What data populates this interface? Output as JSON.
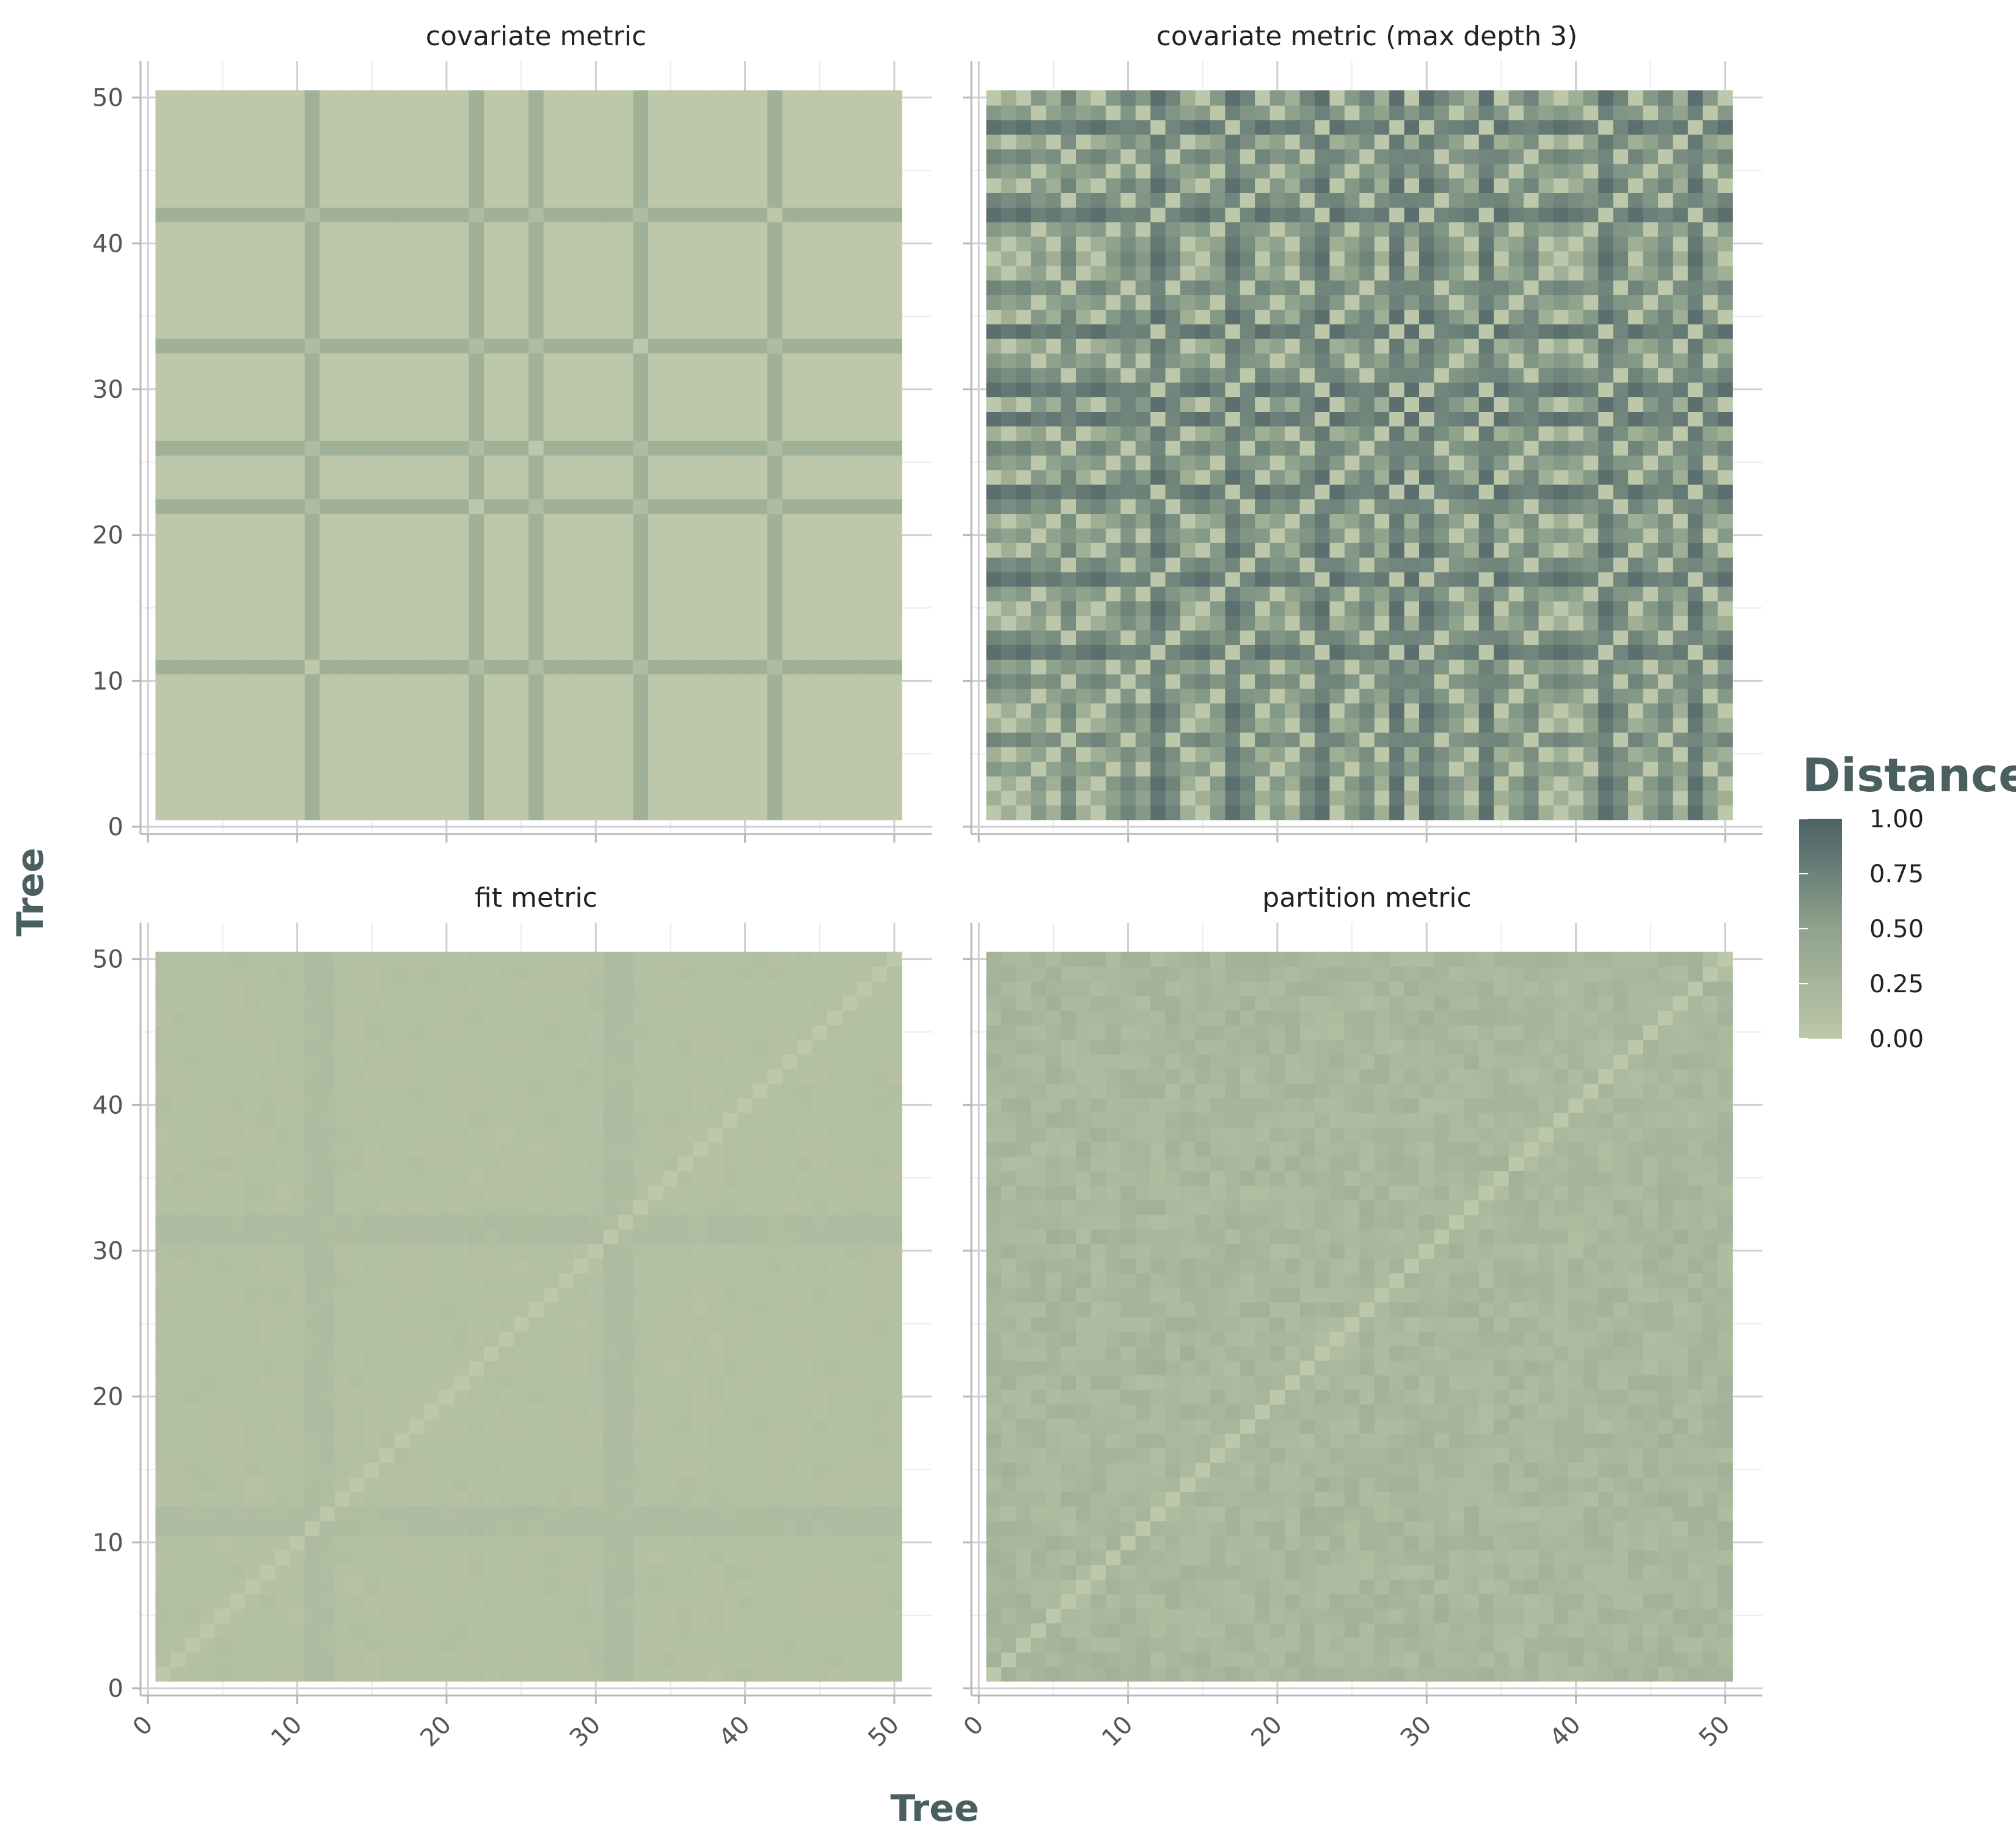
{
  "chart_data": {
    "type": "heatmap",
    "xlabel": "Tree",
    "ylabel": "Tree",
    "xlim": [
      0,
      50
    ],
    "ylim": [
      0,
      50
    ],
    "x_ticks": [
      "0",
      "10",
      "20",
      "30",
      "40",
      "50"
    ],
    "y_ticks": [
      "0",
      "10",
      "20",
      "30",
      "40",
      "50"
    ],
    "n_trees": 50,
    "colors": {
      "low": "#bdc7a9",
      "mid": "#8fa38d",
      "high": "#4b6165"
    },
    "legend": {
      "title": "Distance",
      "position": "right",
      "ticks": [
        "1.00",
        "0.75",
        "0.50",
        "0.25",
        "0.00"
      ],
      "range": [
        0,
        1
      ]
    },
    "facets": [
      {
        "title": "covariate metric",
        "pattern": "cross",
        "description_values": {
          "band_value": 0.3,
          "cross_value": 0.4,
          "base_value": 0.0
        },
        "bands": [
          11,
          22,
          26,
          33,
          42
        ]
      },
      {
        "title": "covariate metric (max depth 3)",
        "pattern": "grouped",
        "group_levels": [
          0.0,
          0.3,
          0.55,
          0.7,
          0.85
        ],
        "tree_groups": [
          0,
          1,
          0,
          2,
          1,
          3,
          1,
          0,
          2,
          3,
          2,
          4,
          3,
          1,
          0,
          2,
          4,
          3,
          0,
          2,
          1,
          3,
          4,
          0,
          2,
          3,
          1,
          4,
          0,
          4,
          3,
          2,
          1,
          4,
          0,
          2,
          3,
          1,
          0,
          1,
          2,
          4,
          3,
          0,
          2,
          3,
          1,
          4,
          2,
          0
        ]
      },
      {
        "title": "fit metric",
        "pattern": "smooth",
        "level": 0.1,
        "band_rows": [
          11,
          12,
          31,
          32
        ],
        "band_cols": [
          11,
          12,
          31,
          32
        ]
      },
      {
        "title": "partition metric",
        "pattern": "noisy",
        "level": 0.22,
        "noise": 0.08
      }
    ]
  }
}
